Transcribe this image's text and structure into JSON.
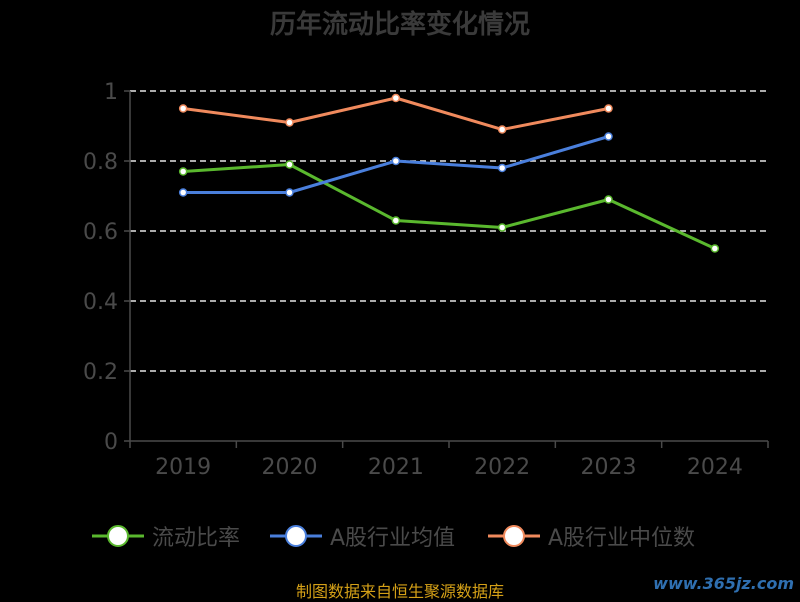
{
  "chart_data": {
    "type": "line",
    "title": "历年流动比率变化情况",
    "categories": [
      "2019",
      "2020",
      "2021",
      "2022",
      "2023",
      "2024"
    ],
    "y_ticks": [
      "0",
      "0.2",
      "0.4",
      "0.6",
      "0.8",
      "1"
    ],
    "ylim": [
      0,
      1
    ],
    "grid": true,
    "legend_position": "bottom",
    "series": [
      {
        "name": "流动比率",
        "color": "#5ab82e",
        "values": [
          0.77,
          0.79,
          0.63,
          0.61,
          0.69,
          0.55
        ]
      },
      {
        "name": "A股行业均值",
        "color": "#4a7fdc",
        "values": [
          0.71,
          0.71,
          0.8,
          0.78,
          0.87,
          null
        ]
      },
      {
        "name": "A股行业中位数",
        "color": "#f08a5d",
        "values": [
          0.95,
          0.91,
          0.98,
          0.89,
          0.95,
          null
        ]
      }
    ]
  },
  "footer": {
    "source": "制图数据来自恒生聚源数据库",
    "watermark": "www.365jz.com"
  }
}
